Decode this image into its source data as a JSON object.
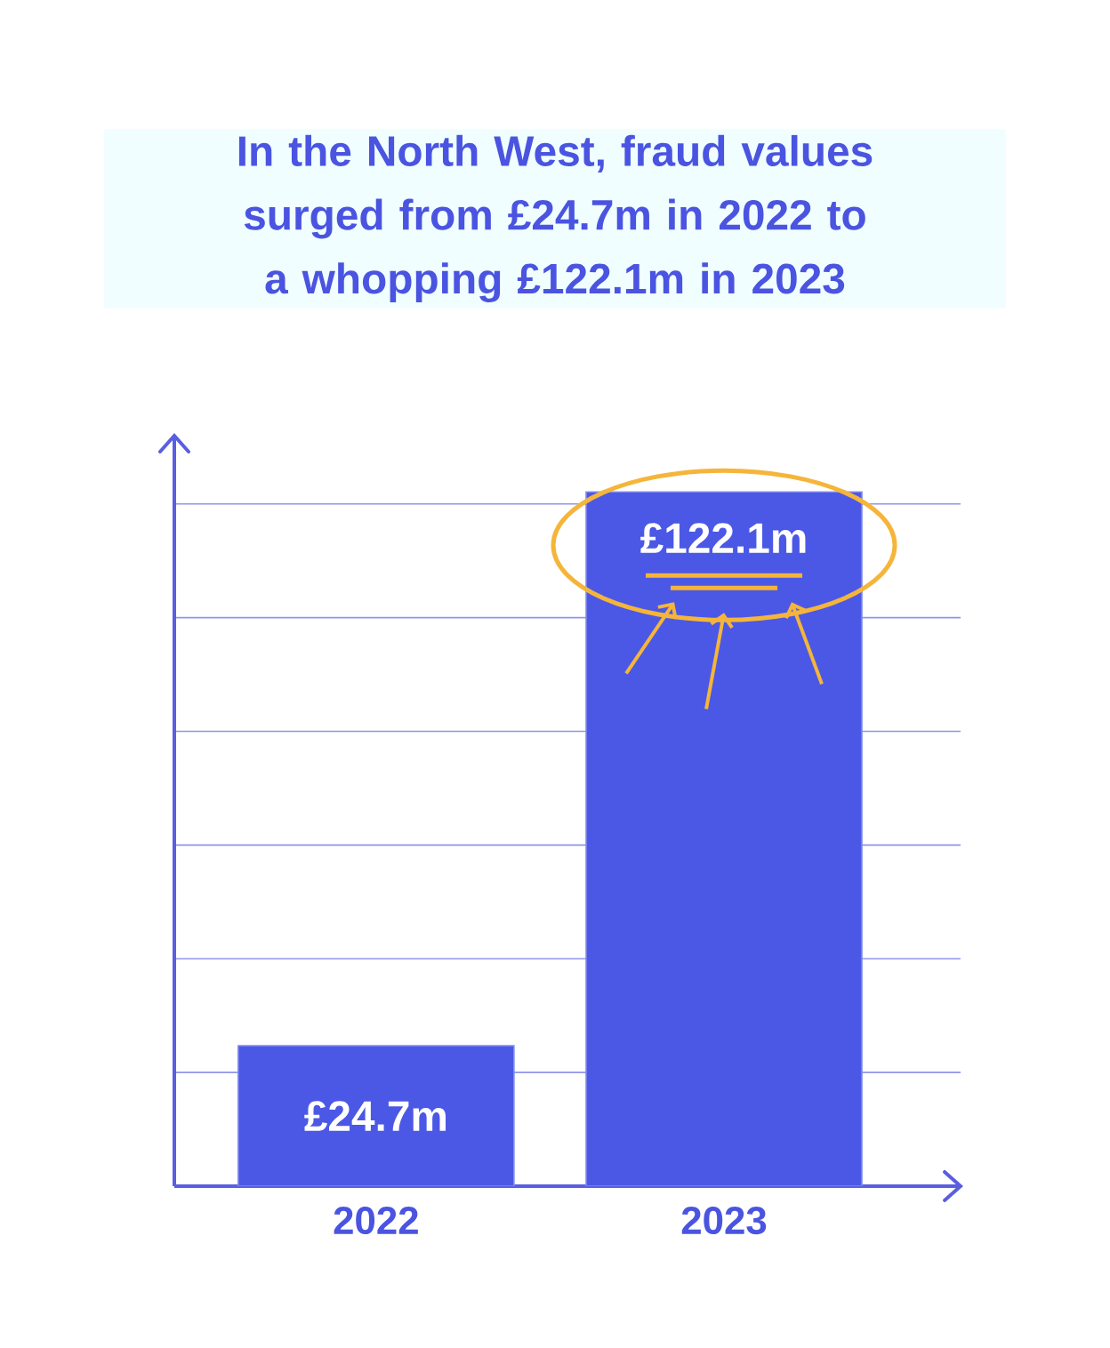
{
  "chart_data": {
    "type": "bar",
    "title": "In the North West, fraud values surged from £24.7m in 2022 to a whopping £122.1m in 2023",
    "categories": [
      "2022",
      "2023"
    ],
    "values": [
      24.7,
      122.1
    ],
    "value_labels": [
      "£24.7m",
      "£122.1m"
    ],
    "color": "#4b58e6",
    "ylim": [
      0,
      132
    ],
    "yticks": [
      {
        "value": 20,
        "label": null
      },
      {
        "value": 40,
        "label": null
      },
      {
        "value": 60,
        "label": null
      },
      {
        "value": 80,
        "label": null
      },
      {
        "value": 100,
        "label": null
      },
      {
        "value": 120,
        "label": null
      }
    ],
    "grid": "y",
    "tick_labels": "x"
  }
}
